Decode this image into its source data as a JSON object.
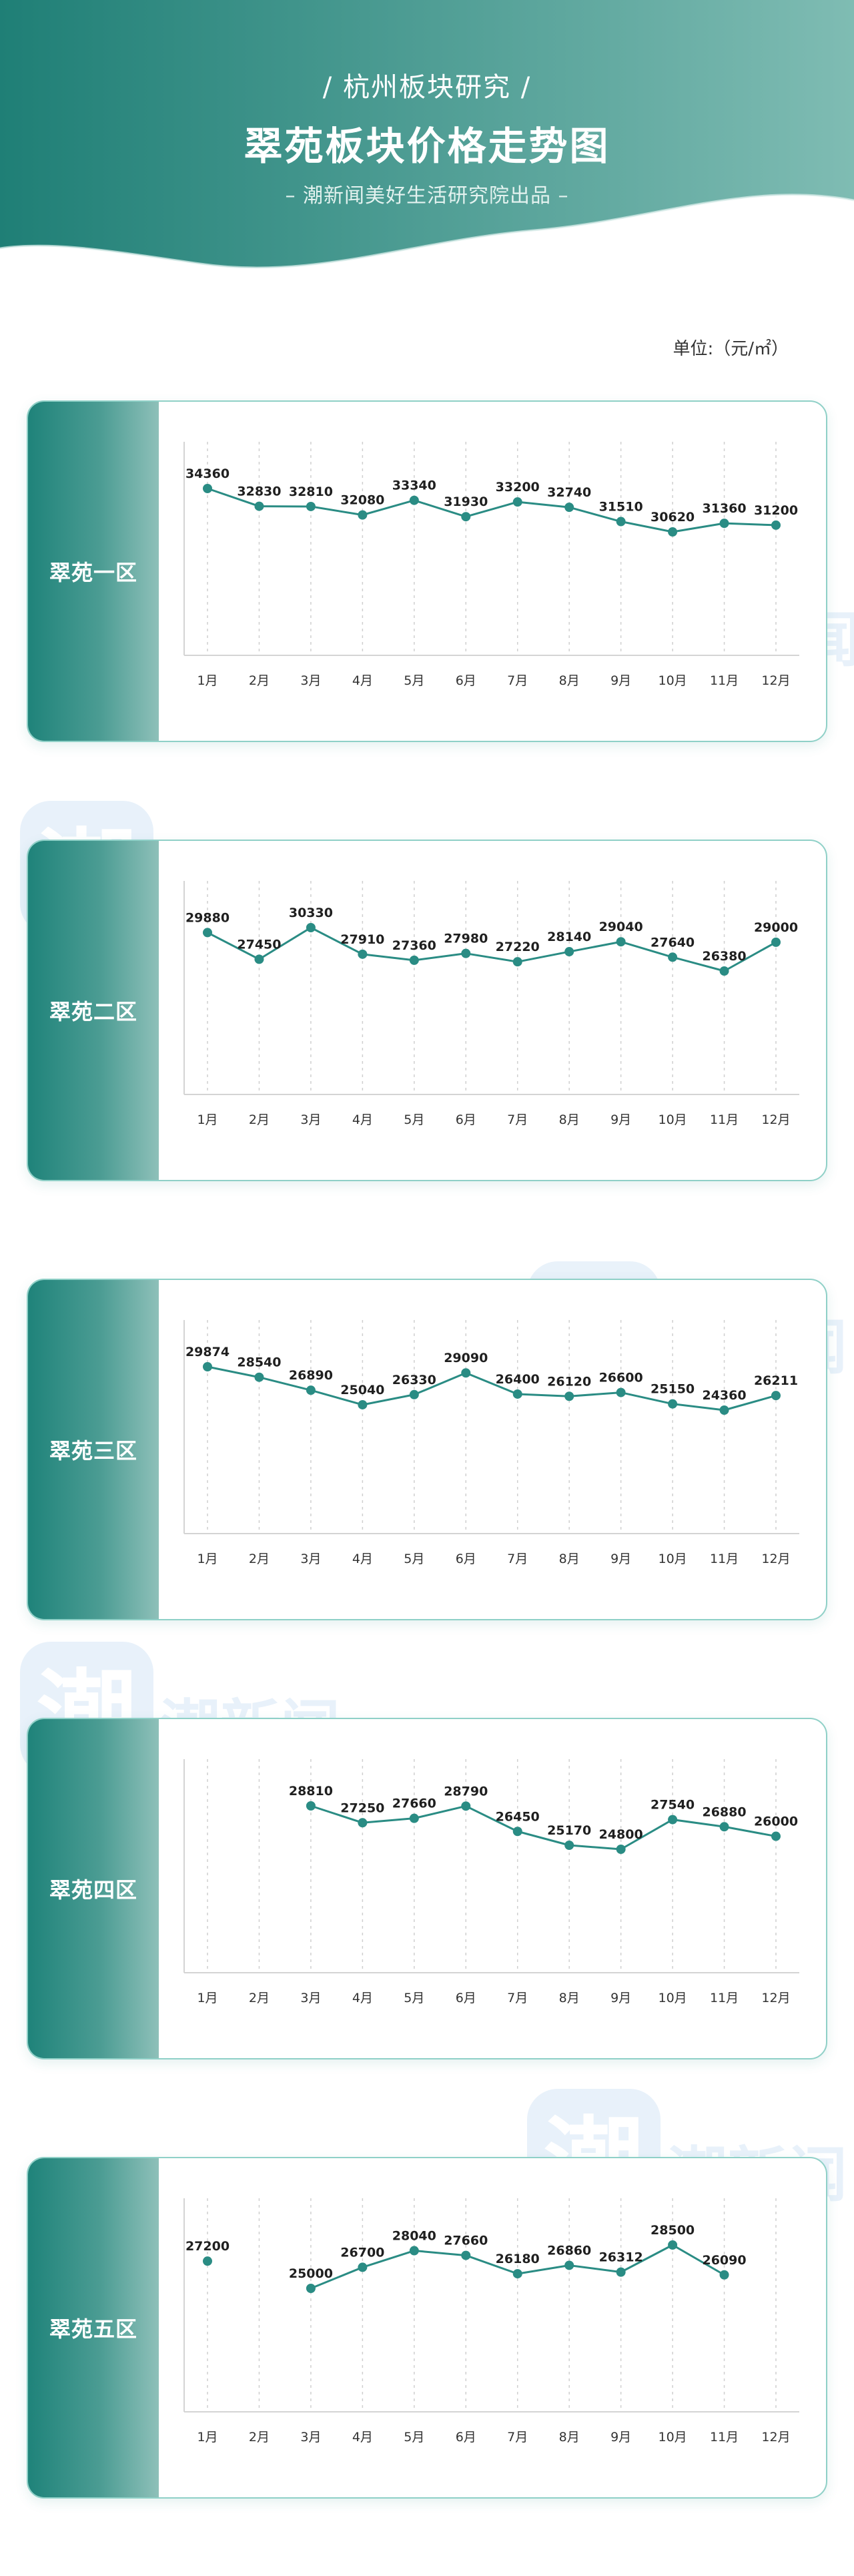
{
  "header": {
    "kicker": "/ 杭州板块研究 /",
    "title": "翠苑板块价格走势图",
    "byline": "– 潮新闻美好生活研究院出品 –",
    "colors": {
      "from": "#1f7f76",
      "to": "#7fbcb3"
    }
  },
  "unit_label": "单位:（元/㎡）",
  "watermark": {
    "logo_glyph": "潮",
    "text": "潮新闻",
    "icon": "chao-news-logo-icon"
  },
  "chart_data": [
    {
      "type": "line",
      "title": "翠苑一区",
      "categories": [
        "1月",
        "2月",
        "3月",
        "4月",
        "5月",
        "6月",
        "7月",
        "8月",
        "9月",
        "10月",
        "11月",
        "12月"
      ],
      "values": [
        34360,
        32830,
        32810,
        32080,
        33340,
        31930,
        33200,
        32740,
        31510,
        30620,
        31360,
        31200
      ],
      "color": "#2a8c84"
    },
    {
      "type": "line",
      "title": "翠苑二区",
      "categories": [
        "1月",
        "2月",
        "3月",
        "4月",
        "5月",
        "6月",
        "7月",
        "8月",
        "9月",
        "10月",
        "11月",
        "12月"
      ],
      "values": [
        29880,
        27450,
        30330,
        27910,
        27360,
        27980,
        27220,
        28140,
        29040,
        27640,
        26380,
        29000
      ],
      "color": "#2a8c84"
    },
    {
      "type": "line",
      "title": "翠苑三区",
      "categories": [
        "1月",
        "2月",
        "3月",
        "4月",
        "5月",
        "6月",
        "7月",
        "8月",
        "9月",
        "10月",
        "11月",
        "12月"
      ],
      "values": [
        29874,
        28540,
        26890,
        25040,
        26330,
        29090,
        26400,
        26120,
        26600,
        25150,
        24360,
        26211
      ],
      "color": "#2a8c84"
    },
    {
      "type": "line",
      "title": "翠苑四区",
      "categories": [
        "1月",
        "2月",
        "3月",
        "4月",
        "5月",
        "6月",
        "7月",
        "8月",
        "9月",
        "10月",
        "11月",
        "12月"
      ],
      "values": [
        null,
        null,
        28810,
        27250,
        27660,
        28790,
        26450,
        25170,
        24800,
        27540,
        26880,
        26000
      ],
      "color": "#2a8c84"
    },
    {
      "type": "line",
      "title": "翠苑五区",
      "categories": [
        "1月",
        "2月",
        "3月",
        "4月",
        "5月",
        "6月",
        "7月",
        "8月",
        "9月",
        "10月",
        "11月",
        "12月"
      ],
      "values": [
        27200,
        null,
        25000,
        26700,
        28040,
        27660,
        26180,
        26860,
        26312,
        28500,
        26090,
        null
      ],
      "color": "#2a8c84"
    }
  ]
}
